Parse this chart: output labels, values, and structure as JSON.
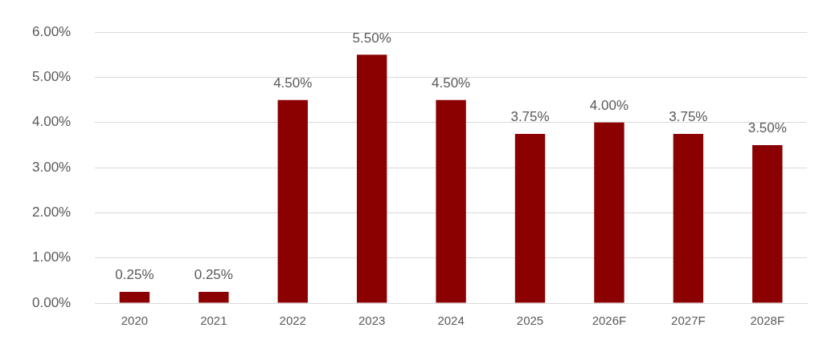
{
  "chart_data": {
    "type": "bar",
    "categories": [
      "2020",
      "2021",
      "2022",
      "2023",
      "2024",
      "2025",
      "2026F",
      "2027F",
      "2028F"
    ],
    "values": [
      0.25,
      0.25,
      4.5,
      5.5,
      4.5,
      3.75,
      4,
      3.75,
      3.5
    ],
    "value_labels": [
      "0.25%",
      "0.25%",
      "4.50%",
      "5.50%",
      "4.50%",
      "3.75%",
      "4.00%",
      "3.75%",
      "3.50%"
    ],
    "color": "#8b0000",
    "ylim": [
      0,
      6
    ],
    "yticks": [
      {
        "value": 0,
        "label": "0.00%"
      },
      {
        "value": 1,
        "label": "1.00%"
      },
      {
        "value": 2,
        "label": "2.00%"
      },
      {
        "value": 3,
        "label": "3.00%"
      },
      {
        "value": 4,
        "label": "4.00%"
      },
      {
        "value": 5,
        "label": "5.00%"
      },
      {
        "value": 6,
        "label": "6.00%"
      }
    ],
    "grid": "y"
  }
}
